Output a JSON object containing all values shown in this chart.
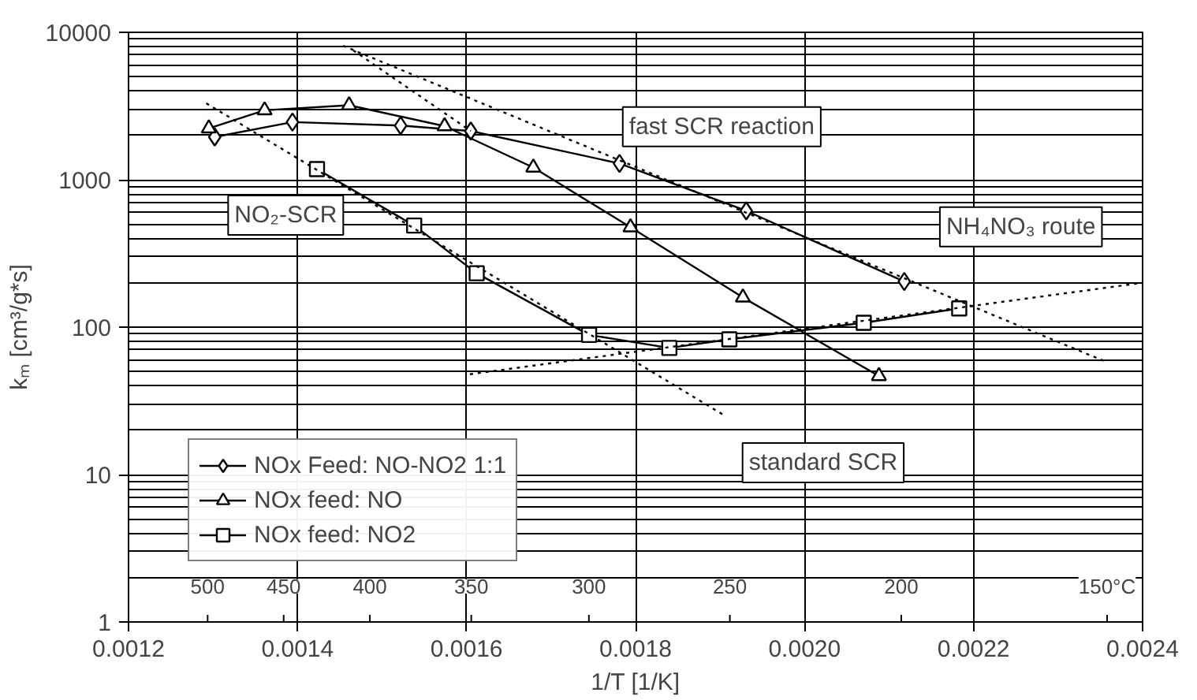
{
  "chart_data": {
    "type": "line",
    "xlabel": "1/T [1/K]",
    "ylabel": "kₘ [cm³/g*s]",
    "xlim": [
      0.0012,
      0.0024
    ],
    "ylim": [
      1,
      10000
    ],
    "log": "y",
    "grid": true,
    "legend": "bottom left",
    "xticks": [
      0.0012,
      0.0014,
      0.0016,
      0.0018,
      {
        "value": 0.002,
        "label": "0.0020"
      },
      0.0022,
      0.0024
    ],
    "yticks": [
      1,
      10,
      100,
      1000,
      10000
    ],
    "series": [
      {
        "name": "NOx Feed: NO-NO2 1:1",
        "color": "#000000",
        "marker": "diamond",
        "x": [
          0.001302,
          0.001394,
          0.001522,
          0.001605,
          0.001781,
          0.001931,
          0.002118
        ],
        "values": [
          1950,
          2460,
          2330,
          2140,
          1290,
          615,
          204
        ]
      },
      {
        "name": "NOx feed: NO",
        "color": "#000000",
        "marker": "triangle",
        "x": [
          0.001295,
          0.001361,
          0.001461,
          0.001574,
          0.001679,
          0.001794,
          0.001927,
          0.002088
        ],
        "values": [
          2230,
          2960,
          3200,
          2310,
          1210,
          476,
          159,
          46.6
        ]
      },
      {
        "name": "NOx feed: NO2",
        "color": "#000000",
        "marker": "square",
        "x": [
          0.001423,
          0.001538,
          0.001612,
          0.001745,
          0.00184,
          0.001911,
          0.00207,
          0.002183
        ],
        "values": [
          1180,
          489,
          232,
          88.5,
          72.3,
          82.6,
          107,
          134
        ]
      },
      {
        "type": "line",
        "color": "#000000",
        "marker": "none",
        "line_style": "dotted",
        "x": [
          0.001292,
          0.001906
        ],
        "values": [
          3300,
          25
        ]
      },
      {
        "type": "line",
        "color": "#000000",
        "marker": "none",
        "line_style": "dotted",
        "x": [
          0.001454,
          0.002359
        ],
        "values": [
          8100,
          57.5
        ]
      },
      {
        "type": "line",
        "color": "#000000",
        "marker": "none",
        "line_style": "dotted",
        "x": [
          0.001466,
          0.001605
        ],
        "values": [
          7540,
          2140
        ]
      },
      {
        "type": "line",
        "color": "#000000",
        "marker": "none",
        "line_style": "dotted",
        "x": [
          0.001604,
          0.0024
        ],
        "values": [
          47.9,
          200
        ]
      }
    ],
    "annotations": [
      "fast SCR reaction",
      "NO₂-SCR",
      "NH₄NO₃ route",
      "standard SCR",
      "500",
      "450",
      "400",
      "350",
      "300",
      "250",
      "200",
      "150°C"
    ]
  }
}
